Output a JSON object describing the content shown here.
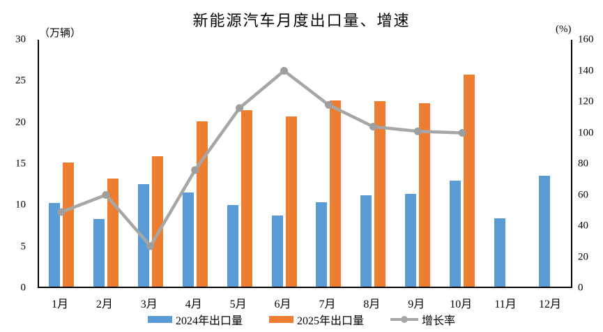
{
  "title": "新能源汽车月度出口量、增速",
  "left_axis": {
    "unit": "（万辆）",
    "min": 0,
    "max": 30,
    "ticks": [
      0,
      5,
      10,
      15,
      20,
      25,
      30
    ]
  },
  "right_axis": {
    "unit": "(%)",
    "min": 0,
    "max": 160,
    "ticks": [
      0,
      20,
      40,
      60,
      80,
      100,
      120,
      140,
      160
    ]
  },
  "colors": {
    "bar_2024": "#5B9BD5",
    "bar_2025": "#ED7D31",
    "growth_line": "#A6A6A6",
    "axis": "#000000"
  },
  "chart_data": {
    "type": "bar+line",
    "title": "新能源汽车月度出口量、增速",
    "categories": [
      "1月",
      "2月",
      "3月",
      "4月",
      "5月",
      "6月",
      "7月",
      "8月",
      "9月",
      "10月",
      "11月",
      "12月"
    ],
    "series": [
      {
        "name": "2024年出口量",
        "type": "bar",
        "axis": "left",
        "color": "#5B9BD5",
        "values": [
          10.1,
          8.2,
          12.4,
          11.4,
          9.9,
          8.6,
          10.2,
          11.0,
          11.2,
          12.8,
          8.3,
          13.4
        ]
      },
      {
        "name": "2025年出口量",
        "type": "bar",
        "axis": "left",
        "color": "#ED7D31",
        "values": [
          15.0,
          13.1,
          15.8,
          20.0,
          21.3,
          20.6,
          22.5,
          22.4,
          22.2,
          25.6,
          null,
          null
        ]
      },
      {
        "name": "增长率",
        "type": "line",
        "axis": "right",
        "color": "#A6A6A6",
        "values": [
          49,
          60,
          27,
          76,
          116,
          140,
          118,
          104,
          101,
          100,
          null,
          null
        ]
      }
    ],
    "left_ylabel": "（万辆）",
    "right_ylabel": "(%)",
    "left_ylim": [
      0,
      30
    ],
    "right_ylim": [
      0,
      160
    ],
    "grid": false,
    "legend_position": "bottom"
  }
}
